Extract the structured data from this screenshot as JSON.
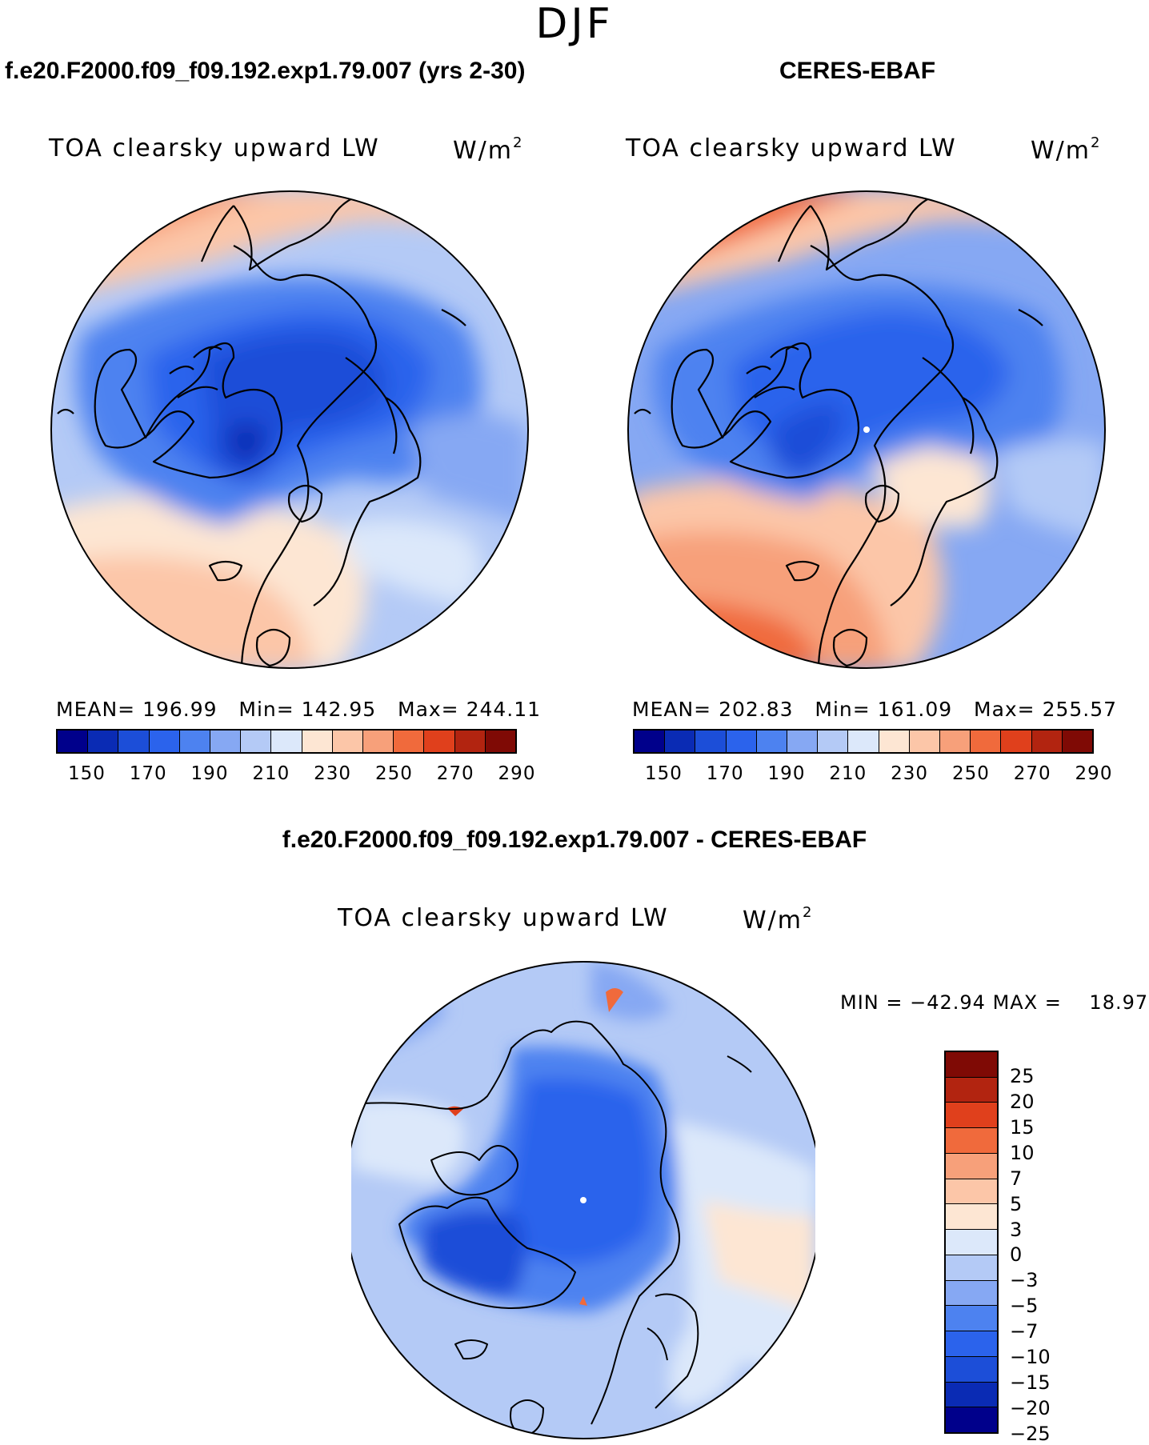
{
  "season": "DJF",
  "panels": [
    {
      "title": "f.e20.F2000.f09_f09.192.exp1.79.007 (yrs 2-30)",
      "variable": "TOA clearsky upward LW",
      "units_base": "W/m",
      "units_exp": "2",
      "mean_label": "MEAN=",
      "mean": "196.99",
      "min_label": "Min=",
      "min": "142.95",
      "max_label": "Max=",
      "max": "244.11"
    },
    {
      "title": "CERES-EBAF",
      "variable": "TOA clearsky upward LW",
      "units_base": "W/m",
      "units_exp": "2",
      "mean_label": "MEAN=",
      "mean": "202.83",
      "min_label": "Min=",
      "min": "161.09",
      "max_label": "Max=",
      "max": "255.57"
    }
  ],
  "colorbar": {
    "colors": [
      "#00008b",
      "#0a2bb4",
      "#1c4ed8",
      "#2b63ec",
      "#4d82f0",
      "#86a8f3",
      "#b4caf6",
      "#dce8fa",
      "#fde6d3",
      "#fcc6a8",
      "#f7a07a",
      "#f06a3c",
      "#e0401c",
      "#b22410",
      "#7f0a05"
    ],
    "labels": [
      "150",
      "170",
      "190",
      "210",
      "230",
      "250",
      "270",
      "290"
    ]
  },
  "diff_panel": {
    "title": "f.e20.F2000.f09_f09.192.exp1.79.007 - CERES-EBAF",
    "variable": "TOA clearsky upward LW",
    "units_base": "W/m",
    "units_exp": "2",
    "min_label": "MIN =",
    "min": "−42.94",
    "max_label": "MAX =",
    "max": "18.97"
  },
  "diff_colorbar": {
    "colors": [
      "#7f0a05",
      "#b22410",
      "#e0401c",
      "#f06a3c",
      "#f7a07a",
      "#fcc6a8",
      "#fde6d3",
      "#dce8fa",
      "#b4caf6",
      "#86a8f3",
      "#4d82f0",
      "#2b63ec",
      "#1c4ed8",
      "#0a2bb4",
      "#00008b"
    ],
    "labels": [
      "25",
      "20",
      "15",
      "10",
      "7",
      "5",
      "3",
      "0",
      "−3",
      "−5",
      "−7",
      "−10",
      "−15",
      "−20",
      "−25"
    ]
  }
}
